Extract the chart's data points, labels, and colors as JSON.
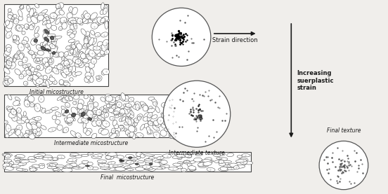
{
  "bg_color": "#f0eeeb",
  "fig_bg": "#f0eeeb",
  "initial_micro_label": "Initial micostructure",
  "intermediate_micro_label": "Intermediate micostructure",
  "final_micro_label": "Final  micostructure",
  "strain_direction_label": "Strain direction",
  "intermediate_texture_label": "Intermediate texture",
  "final_texture_label": "Final texture",
  "increasing_label": "Increasing\nsuerplastic\nstrain",
  "text_color": "#1a1a1a",
  "border_color": "#555555",
  "arrow_color": "#1a1a1a"
}
